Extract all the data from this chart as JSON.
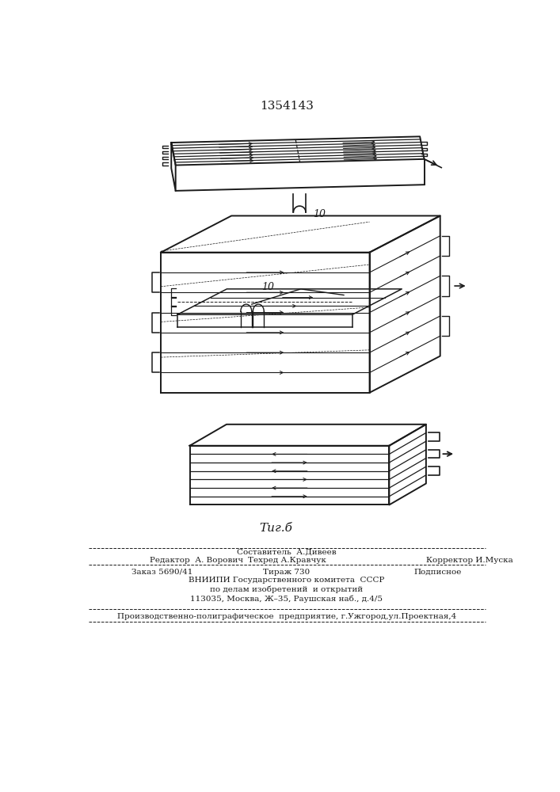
{
  "patent_number": "1354143",
  "fig_label": "Τиг.б",
  "label_10": "10",
  "bg_color": "#ffffff",
  "line_color": "#1a1a1a",
  "footer": {
    "line1": "Составитель  А.Дивеев",
    "line2_left": "Редактор  А. Ворович",
    "line2_mid": "Техред А.Кравчук",
    "line2_right": "Корректор И.Муска",
    "line3_left": "Заказ 5690/41",
    "line3_mid": "Тираж 730",
    "line3_right": "Подписное",
    "line4": "ВНИИПИ Государственного комитета  СССР",
    "line5": "по делам изобретений  и открытий",
    "line6": "113035, Москва, Ж–35, Раушская наб., д.4/5",
    "line7": "Производственно-полиграфическое  предприятие, г.Ужгород,ул.Проектная,4"
  }
}
